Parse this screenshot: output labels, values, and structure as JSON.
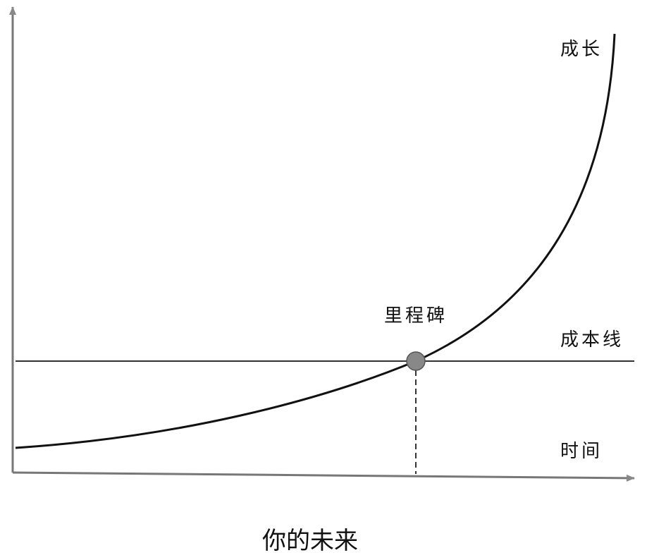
{
  "labels": {
    "growth": "成长",
    "milestone": "里程碑",
    "cost_line": "成本线",
    "time": "时间"
  },
  "caption": "你的未来"
}
